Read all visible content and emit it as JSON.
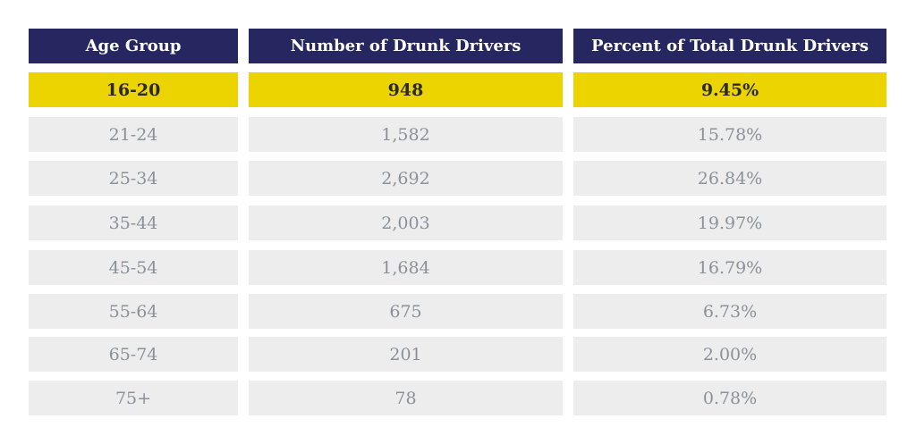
{
  "chart_data": {
    "type": "table",
    "columns": [
      "Age Group",
      "Number of Drunk Drivers",
      "Percent of Total Drunk Drivers"
    ],
    "rows": [
      [
        "16-20",
        "948",
        "9.45%"
      ],
      [
        "21-24",
        "1,582",
        "15.78%"
      ],
      [
        "25-34",
        "2,692",
        "26.84%"
      ],
      [
        "35-44",
        "2,003",
        "19.97%"
      ],
      [
        "45-54",
        "1,684",
        "16.79%"
      ],
      [
        "55-64",
        "675",
        "6.73%"
      ],
      [
        "65-74",
        "201",
        "2.00%"
      ],
      [
        "75+",
        "78",
        "0.78%"
      ]
    ],
    "highlighted_row": "16-20",
    "colors": {
      "header": "#262661",
      "highlight": "#ecd400",
      "row": "#ededed",
      "row_text": "#8a9199"
    }
  }
}
